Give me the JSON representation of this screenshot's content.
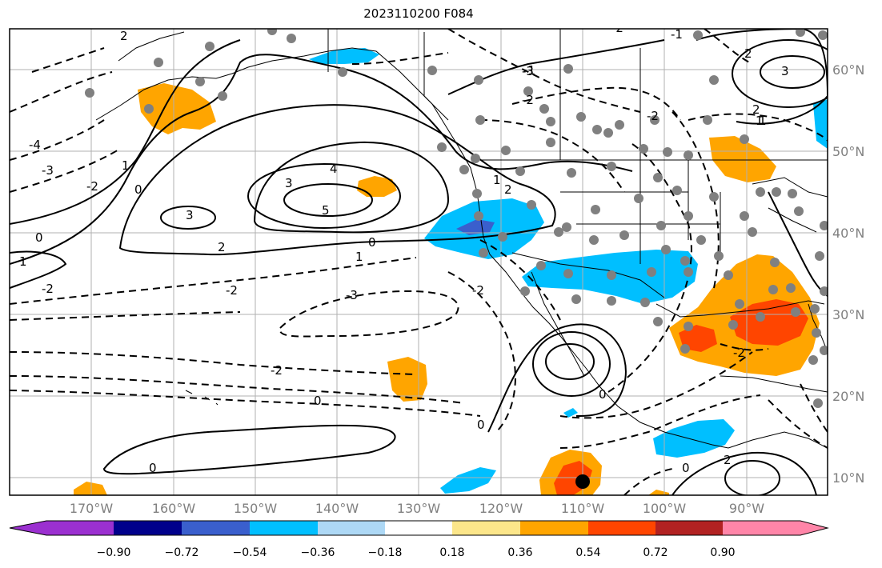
{
  "title": "2023110200 F084",
  "x_ticks": [
    "170°W",
    "160°W",
    "150°W",
    "140°W",
    "130°W",
    "120°W",
    "110°W",
    "100°W",
    "90°W"
  ],
  "y_ticks": [
    "60°N",
    "50°N",
    "40°N",
    "30°N",
    "20°N",
    "10°N"
  ],
  "contour_labels": [
    "-3",
    "-2",
    "0",
    "1",
    "-2",
    "-3",
    "-2",
    "0",
    "3",
    "4",
    "5",
    "3",
    "2",
    "0",
    "-2",
    "-2",
    "-3",
    "0",
    "2",
    "0",
    "1",
    "-1",
    "-2",
    "-2",
    "1",
    "0",
    "1",
    "2",
    "-2",
    "0",
    "-2",
    "0",
    "-1",
    "2",
    "3",
    "2",
    "1",
    "-4",
    "1",
    "2"
  ],
  "colorbar": {
    "tick_labels": [
      "−0.90",
      "−0.72",
      "−0.54",
      "−0.36",
      "−0.18",
      "0.18",
      "0.36",
      "0.54",
      "0.72",
      "0.90"
    ],
    "colors": [
      "#9b30d0",
      "#00008b",
      "#3a5fcd",
      "#00bfff",
      "#add8f5",
      "#ffffff",
      "#fce68a",
      "#ffa500",
      "#ff4500",
      "#b22222",
      "#ff85a8"
    ]
  },
  "fill_colors": {
    "orange": "#ffa500",
    "red_orange": "#ff4500",
    "light_orange": "#fce68a",
    "cyan": "#00bfff",
    "blue": "#3a5fcd",
    "marker_gray": "#808080",
    "marker_black": "#000000"
  }
}
